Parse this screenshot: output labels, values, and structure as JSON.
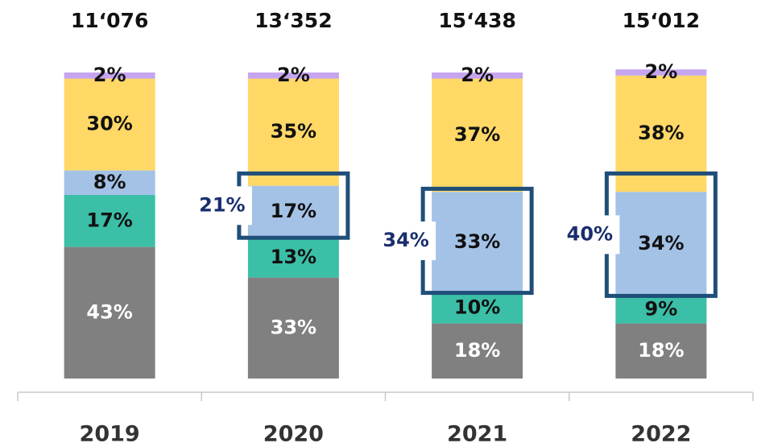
{
  "chart_data": {
    "type": "stacked_bar",
    "categories": [
      "2019",
      "2020",
      "2021",
      "2022"
    ],
    "total_labels": [
      "11‘076",
      "13‘352",
      "15‘438",
      "15‘012"
    ],
    "ylim": [
      0,
      100
    ],
    "series": [
      {
        "color": "#808080",
        "text_color": "#ffffff",
        "values": [
          43,
          33,
          18,
          18
        ],
        "value_labels": [
          "43%",
          "33%",
          "18%",
          "18%"
        ]
      },
      {
        "color": "#3bbfa7",
        "text_color": "#111111",
        "values": [
          17,
          13,
          10,
          9
        ],
        "value_labels": [
          "17%",
          "13%",
          "10%",
          "9%"
        ]
      },
      {
        "color": "#a4c2e6",
        "text_color": "#111111",
        "values": [
          8,
          17,
          33,
          34
        ],
        "value_labels": [
          "8%",
          "17%",
          "33%",
          "34%"
        ]
      },
      {
        "color": "#ffd866",
        "text_color": "#111111",
        "values": [
          30,
          35,
          37,
          38
        ],
        "value_labels": [
          "30%",
          "35%",
          "37%",
          "38%"
        ]
      },
      {
        "color": "#c5a5f0",
        "text_color": "#111111",
        "values": [
          2,
          2,
          2,
          2
        ],
        "value_labels": [
          "2%",
          "2%",
          "2%",
          "2%"
        ]
      }
    ],
    "annotations": [
      {
        "category": "2020",
        "value": 21,
        "label": "21%"
      },
      {
        "category": "2021",
        "value": 34,
        "label": "34%"
      },
      {
        "category": "2022",
        "value": 40,
        "label": "40%"
      }
    ],
    "annotation_color": "#1f4e79"
  }
}
